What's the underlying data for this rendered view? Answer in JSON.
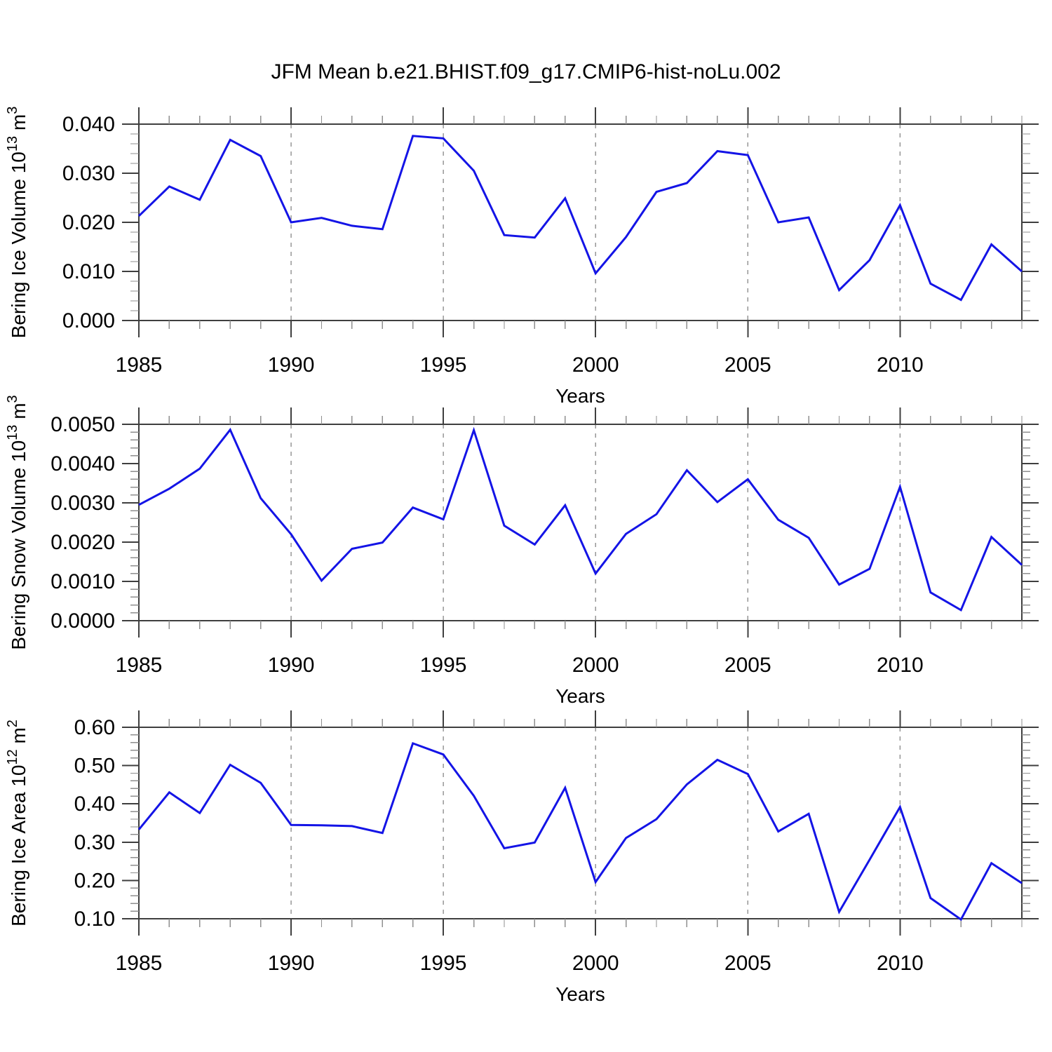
{
  "title": "JFM Mean b.e21.BHIST.f09_g17.CMIP6-hist-noLu.002",
  "style": {
    "line_color": "#1414e6",
    "grid_color": "#8f8f8f",
    "axis_color": "#3f3f3f",
    "minor_tick_color": "#8f8f8f",
    "text_color": "#000000",
    "background": "#ffffff"
  },
  "x_axis": {
    "label": "Years",
    "range": [
      1985,
      2014
    ],
    "ticks": [
      1985,
      1990,
      1995,
      2000,
      2005,
      2010
    ],
    "gridlines": [
      1990,
      1995,
      2000,
      2005,
      2010
    ],
    "years": [
      1985,
      1986,
      1987,
      1988,
      1989,
      1990,
      1991,
      1992,
      1993,
      1994,
      1995,
      1996,
      1997,
      1998,
      1999,
      2000,
      2001,
      2002,
      2003,
      2004,
      2005,
      2006,
      2007,
      2008,
      2009,
      2010,
      2011,
      2012,
      2013,
      2014
    ]
  },
  "chart_data": [
    {
      "type": "line",
      "id": "ice-volume",
      "ylabel": "Bering Ice Volume 10^13 m^3",
      "ylabel_parts": [
        {
          "text": "Bering Ice Volume 10",
          "sup": false
        },
        {
          "text": "13",
          "sup": true
        },
        {
          "text": " m",
          "sup": false
        },
        {
          "text": "3",
          "sup": true
        }
      ],
      "ylim": [
        0.0,
        0.04
      ],
      "ymajor": 0.01,
      "yminor": 0.002,
      "ydecimals": 3,
      "ytick_labels": [
        "0.000",
        "0.010",
        "0.020",
        "0.030",
        "0.040"
      ],
      "values": [
        0.0213,
        0.0273,
        0.0246,
        0.0368,
        0.0335,
        0.02,
        0.0209,
        0.0193,
        0.0186,
        0.0376,
        0.0371,
        0.0305,
        0.0174,
        0.0169,
        0.0249,
        0.0096,
        0.017,
        0.0262,
        0.028,
        0.0345,
        0.0337,
        0.02,
        0.021,
        0.0062,
        0.0123,
        0.0235,
        0.0075,
        0.0042,
        0.0155,
        0.01
      ]
    },
    {
      "type": "line",
      "id": "snow-volume",
      "ylabel": "Bering Snow Volume 10^13 m^3",
      "ylabel_parts": [
        {
          "text": "Bering Snow Volume 10",
          "sup": false
        },
        {
          "text": "13",
          "sup": true
        },
        {
          "text": " m",
          "sup": false
        },
        {
          "text": "3",
          "sup": true
        }
      ],
      "ylim": [
        0.0,
        0.005
      ],
      "ymajor": 0.001,
      "yminor": 0.0002,
      "ydecimals": 4,
      "ytick_labels": [
        "0.0000",
        "0.0010",
        "0.0020",
        "0.0030",
        "0.0040",
        "0.0050"
      ],
      "values": [
        0.00295,
        0.00336,
        0.00387,
        0.00486,
        0.00312,
        0.0022,
        0.00102,
        0.00183,
        0.00199,
        0.00288,
        0.00258,
        0.00485,
        0.00242,
        0.00194,
        0.00294,
        0.0012,
        0.00221,
        0.00271,
        0.00383,
        0.00302,
        0.0036,
        0.00257,
        0.00211,
        0.00092,
        0.00132,
        0.00341,
        0.00072,
        0.00027,
        0.00213,
        0.00142
      ]
    },
    {
      "type": "line",
      "id": "ice-area",
      "ylabel": "Bering Ice Area 10^12 m^2",
      "ylabel_parts": [
        {
          "text": "Bering Ice Area 10",
          "sup": false
        },
        {
          "text": "12",
          "sup": true
        },
        {
          "text": " m",
          "sup": false
        },
        {
          "text": "2",
          "sup": true
        }
      ],
      "ylim": [
        0.1,
        0.6
      ],
      "ymajor": 0.1,
      "yminor": 0.02,
      "ydecimals": 2,
      "ytick_labels": [
        "0.10",
        "0.20",
        "0.30",
        "0.40",
        "0.50",
        "0.60"
      ],
      "values": [
        0.333,
        0.43,
        0.376,
        0.502,
        0.455,
        0.345,
        0.344,
        0.342,
        0.324,
        0.558,
        0.529,
        0.421,
        0.284,
        0.299,
        0.442,
        0.196,
        0.311,
        0.36,
        0.451,
        0.515,
        0.478,
        0.328,
        0.374,
        0.118,
        0.254,
        0.392,
        0.154,
        0.098,
        0.245,
        0.193
      ]
    }
  ]
}
